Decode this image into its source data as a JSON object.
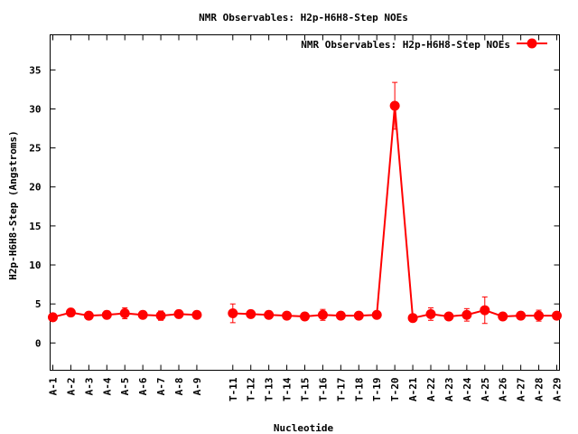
{
  "chart_data": {
    "type": "line",
    "title": "NMR Observables: H2p-H6H8-Step NOEs",
    "xlabel": "Nucleotide",
    "ylabel": "H2p-H6H8-Step (Angstroms)",
    "ylim": [
      -3.5,
      39.5
    ],
    "yticks": [
      0,
      5,
      10,
      15,
      20,
      25,
      30,
      35
    ],
    "x_positions": [
      1,
      29
    ],
    "grid": false,
    "legend_position": "top-right",
    "categories": [
      "A-1",
      "A-2",
      "A-3",
      "A-4",
      "A-5",
      "A-6",
      "A-7",
      "A-8",
      "A-9",
      "T-11",
      "T-12",
      "T-13",
      "T-14",
      "T-15",
      "T-16",
      "T-17",
      "T-18",
      "T-19",
      "T-20",
      "A-21",
      "A-22",
      "A-23",
      "A-24",
      "A-25",
      "A-26",
      "A-27",
      "A-28",
      "A-29"
    ],
    "category_x": [
      1,
      2,
      3,
      4,
      5,
      6,
      7,
      8,
      9,
      11,
      12,
      13,
      14,
      15,
      16,
      17,
      18,
      19,
      20,
      21,
      22,
      23,
      24,
      25,
      26,
      27,
      28,
      29
    ],
    "series": [
      {
        "name": "NMR Observables: H2p-H6H8-Step NOEs",
        "color": "#ff0000",
        "segments": [
          {
            "x": [
              1,
              2,
              3,
              4,
              5,
              6,
              7,
              8,
              9
            ],
            "y": [
              3.3,
              3.9,
              3.5,
              3.6,
              3.8,
              3.6,
              3.5,
              3.7,
              3.6
            ],
            "err": [
              0.4,
              0.5,
              0.4,
              0.5,
              0.7,
              0.4,
              0.6,
              0.5,
              0.4
            ]
          },
          {
            "x": [
              11,
              12,
              13,
              14,
              15,
              16,
              17,
              18,
              19,
              20,
              21,
              22,
              23,
              24,
              25,
              26,
              27,
              28,
              29
            ],
            "y": [
              3.8,
              3.7,
              3.6,
              3.5,
              3.4,
              3.6,
              3.5,
              3.5,
              3.6,
              30.4,
              3.2,
              3.7,
              3.4,
              3.6,
              4.2,
              3.4,
              3.5,
              3.5,
              3.5
            ],
            "err": [
              1.2,
              0.3,
              0.4,
              0.3,
              0.3,
              0.7,
              0.3,
              0.3,
              0.3,
              3.0,
              0.4,
              0.8,
              0.4,
              0.8,
              1.7,
              0.3,
              0.3,
              0.7,
              0.4
            ]
          }
        ]
      }
    ]
  }
}
